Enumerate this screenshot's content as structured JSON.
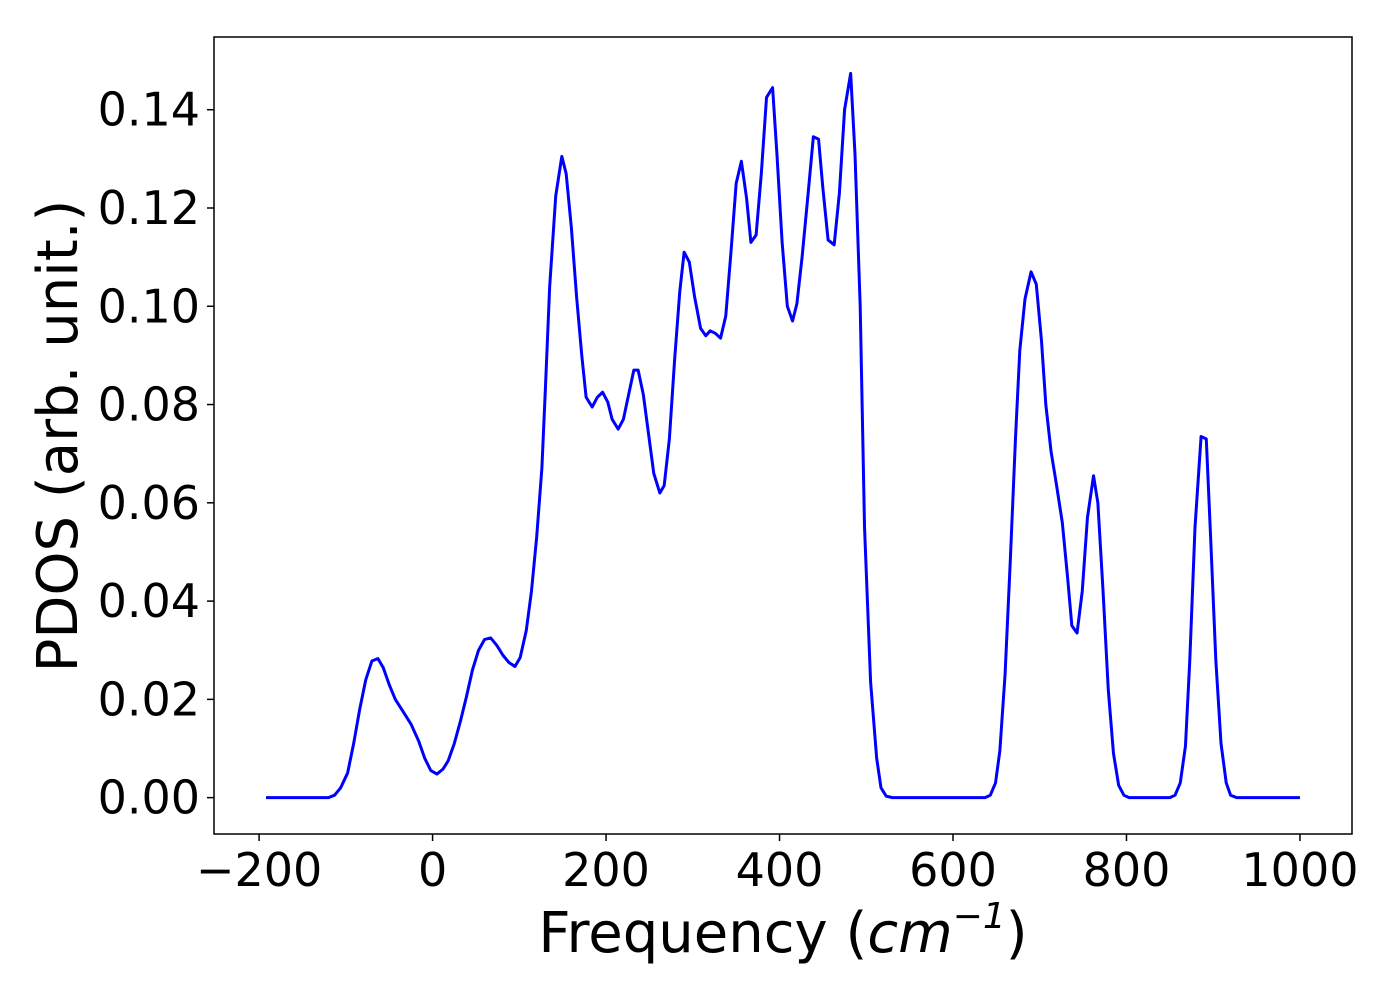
{
  "chart_data": {
    "type": "line",
    "xlabel": [
      "Frequency (",
      "cm",
      "−1",
      ")"
    ],
    "ylabel": "PDOS (arb. unit.)",
    "x": [
      -192,
      -120,
      -113,
      -106,
      -98,
      -91,
      -84,
      -77,
      -70,
      -63,
      -57,
      -50,
      -43,
      -35,
      -25,
      -16,
      -9,
      -2,
      5,
      12,
      18,
      25,
      32,
      39,
      46,
      53,
      60,
      67,
      74,
      81,
      88,
      95,
      101,
      108,
      114,
      120,
      126,
      130,
      135,
      142,
      149,
      154,
      160,
      166,
      172,
      177,
      184,
      190,
      196,
      202,
      207,
      214,
      220,
      226,
      232,
      237,
      243,
      249,
      255,
      262,
      267,
      273,
      279,
      285,
      290,
      296,
      302,
      309,
      315,
      320,
      326,
      332,
      338,
      344,
      350,
      356,
      362,
      367,
      373,
      379,
      385,
      392,
      397,
      403,
      409,
      415,
      420,
      426,
      433,
      439,
      445,
      450,
      456,
      463,
      469,
      475,
      482,
      487,
      493,
      498,
      505,
      512,
      517,
      523,
      530,
      637,
      643,
      649,
      654,
      660,
      666,
      672,
      677,
      683,
      690,
      696,
      702,
      707,
      713,
      719,
      726,
      732,
      737,
      743,
      749,
      755,
      762,
      767,
      773,
      779,
      785,
      791,
      797,
      803,
      850,
      856,
      862,
      868,
      873,
      879,
      886,
      892,
      897,
      903,
      909,
      915,
      920,
      927,
      1000
    ],
    "series": [
      {
        "color": "#0000ff",
        "values": [
          0,
          0,
          0.0005,
          0.002,
          0.005,
          0.011,
          0.018,
          0.024,
          0.0278,
          0.0283,
          0.0265,
          0.023,
          0.02,
          0.0178,
          0.015,
          0.0115,
          0.008,
          0.0055,
          0.0048,
          0.0058,
          0.0075,
          0.011,
          0.0155,
          0.0205,
          0.026,
          0.03,
          0.0322,
          0.0325,
          0.031,
          0.029,
          0.0275,
          0.0267,
          0.0285,
          0.034,
          0.042,
          0.053,
          0.067,
          0.083,
          0.104,
          0.1225,
          0.1305,
          0.127,
          0.116,
          0.102,
          0.09,
          0.0815,
          0.0795,
          0.0815,
          0.0825,
          0.0805,
          0.077,
          0.075,
          0.077,
          0.082,
          0.087,
          0.087,
          0.082,
          0.074,
          0.066,
          0.062,
          0.0635,
          0.073,
          0.089,
          0.103,
          0.111,
          0.109,
          0.102,
          0.0955,
          0.094,
          0.095,
          0.0945,
          0.0935,
          0.098,
          0.111,
          0.125,
          0.1295,
          0.122,
          0.113,
          0.1145,
          0.127,
          0.1425,
          0.1445,
          0.131,
          0.113,
          0.1,
          0.097,
          0.1005,
          0.11,
          0.123,
          0.1345,
          0.134,
          0.124,
          0.1135,
          0.1125,
          0.123,
          0.14,
          0.1474,
          0.131,
          0.1,
          0.055,
          0.0235,
          0.008,
          0.002,
          0.0003,
          0,
          0,
          0.0005,
          0.003,
          0.0095,
          0.025,
          0.048,
          0.073,
          0.091,
          0.1015,
          0.107,
          0.1045,
          0.093,
          0.08,
          0.0705,
          0.064,
          0.056,
          0.045,
          0.035,
          0.0335,
          0.042,
          0.057,
          0.0655,
          0.06,
          0.042,
          0.022,
          0.009,
          0.0025,
          0.0005,
          0,
          0,
          0.0005,
          0.003,
          0.0105,
          0.028,
          0.055,
          0.0735,
          0.073,
          0.053,
          0.028,
          0.011,
          0.003,
          0.0005,
          0,
          0
        ]
      }
    ],
    "xlim": [
      -252,
      1060
    ],
    "ylim": [
      -0.0074,
      0.1548
    ],
    "xticks": [
      {
        "value": -200,
        "label": "−200"
      },
      0,
      200,
      400,
      600,
      800,
      1000
    ],
    "yticks": [
      {
        "value": 0,
        "label": "0.00"
      },
      0.02,
      0.04,
      0.06,
      0.08,
      {
        "value": 0.1,
        "label": "0.10"
      },
      0.12,
      0.14
    ],
    "grid": false
  }
}
